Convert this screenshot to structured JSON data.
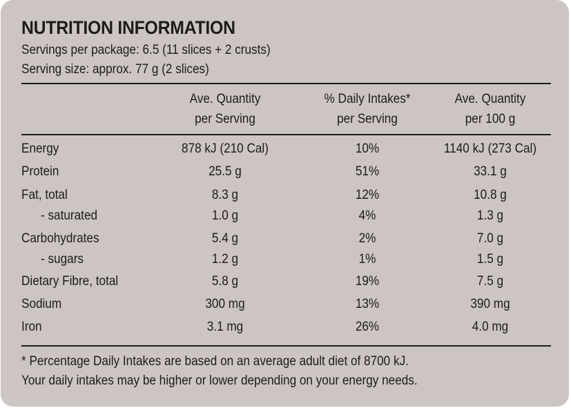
{
  "title": "NUTRITION INFORMATION",
  "servings_per_package": "Servings per package: 6.5 (11 slices + 2 crusts)",
  "serving_size": "Serving size: approx. 77 g (2 slices)",
  "columns": [
    {
      "line1": "Ave. Quantity",
      "line2": "per Serving"
    },
    {
      "line1": "% Daily Intakes*",
      "line2": "per Serving"
    },
    {
      "line1": "Ave. Quantity",
      "line2": "per 100 g"
    }
  ],
  "rows": [
    {
      "name": "Energy",
      "per_serving": "878 kJ (210 Cal)",
      "daily_intake": "10%",
      "per_100g": "1140 kJ (273 Cal)"
    },
    {
      "name": "Protein",
      "per_serving": "25.5 g",
      "daily_intake": "51%",
      "per_100g": "33.1 g"
    },
    {
      "name": "Fat, total",
      "per_serving": "8.3 g",
      "daily_intake": "12%",
      "per_100g": "10.8 g"
    },
    {
      "name": "- saturated",
      "per_serving": "1.0 g",
      "daily_intake": "4%",
      "per_100g": "1.3 g"
    },
    {
      "name": "Carbohydrates",
      "per_serving": "5.4 g",
      "daily_intake": "2%",
      "per_100g": "7.0 g"
    },
    {
      "name": "- sugars",
      "per_serving": "1.2 g",
      "daily_intake": "1%",
      "per_100g": "1.5 g"
    },
    {
      "name": "Dietary Fibre, total",
      "per_serving": "5.8 g",
      "daily_intake": "19%",
      "per_100g": "7.5 g"
    },
    {
      "name": "Sodium",
      "per_serving": "300 mg",
      "daily_intake": "13%",
      "per_100g": "390 mg"
    },
    {
      "name": "Iron",
      "per_serving": "3.1 mg",
      "daily_intake": "26%",
      "per_100g": "4.0 mg"
    }
  ],
  "footnote_1": "* Percentage Daily Intakes are based on an average adult diet of 8700 kJ.",
  "footnote_2": "Your daily intakes may be higher or lower depending on your energy needs.",
  "colors": {
    "panel_background": "#cdc5c2",
    "text": "#1c1c1c"
  }
}
